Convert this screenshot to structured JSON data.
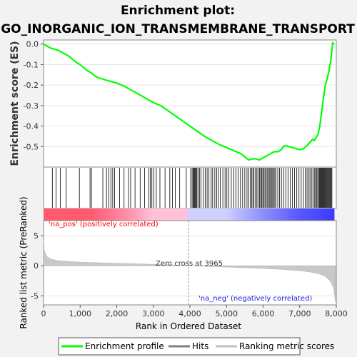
{
  "chart_data": {
    "type": "line",
    "title_line1": "Enrichment plot:",
    "title_line2": "GO_INORGANIC_ION_TRANSMEMBRANE_TRANSPORT",
    "es_panel": {
      "ylabel": "Enrichment score (ES)",
      "ylim": [
        -0.6,
        0.02
      ],
      "yticks": [
        "0.0",
        "-0.1",
        "-0.2",
        "-0.3",
        "-0.4",
        "-0.5"
      ],
      "ytick_values": [
        0.0,
        -0.1,
        -0.2,
        -0.3,
        -0.4,
        -0.5
      ],
      "line_color": "#00ff00",
      "x": [
        0,
        100,
        200,
        300,
        400,
        500,
        600,
        700,
        800,
        900,
        1000,
        1100,
        1200,
        1300,
        1400,
        1500,
        1600,
        1700,
        1800,
        1900,
        2000,
        2200,
        2400,
        2600,
        2800,
        3000,
        3200,
        3400,
        3600,
        3800,
        4000,
        4200,
        4400,
        4600,
        4800,
        5000,
        5200,
        5400,
        5500,
        5600,
        5700,
        5800,
        5900,
        6000,
        6100,
        6200,
        6300,
        6400,
        6500,
        6550,
        6600,
        6700,
        6800,
        6900,
        7000,
        7100,
        7200,
        7300,
        7350,
        7400,
        7450,
        7500,
        7550,
        7600,
        7650,
        7700,
        7750,
        7800,
        7850,
        7900,
        7950
      ],
      "y": [
        0.0,
        -0.01,
        -0.02,
        -0.025,
        -0.03,
        -0.04,
        -0.05,
        -0.06,
        -0.075,
        -0.09,
        -0.1,
        -0.115,
        -0.13,
        -0.14,
        -0.155,
        -0.165,
        -0.17,
        -0.175,
        -0.18,
        -0.185,
        -0.19,
        -0.205,
        -0.225,
        -0.245,
        -0.265,
        -0.285,
        -0.3,
        -0.325,
        -0.35,
        -0.375,
        -0.4,
        -0.425,
        -0.45,
        -0.47,
        -0.49,
        -0.505,
        -0.52,
        -0.535,
        -0.55,
        -0.565,
        -0.56,
        -0.56,
        -0.565,
        -0.555,
        -0.545,
        -0.535,
        -0.525,
        -0.525,
        -0.515,
        -0.5,
        -0.495,
        -0.5,
        -0.505,
        -0.51,
        -0.515,
        -0.51,
        -0.495,
        -0.475,
        -0.465,
        -0.47,
        -0.455,
        -0.44,
        -0.4,
        -0.33,
        -0.26,
        -0.2,
        -0.17,
        -0.13,
        -0.08,
        0.005,
        0.0
      ]
    },
    "hits_panel": {
      "hit_positions": [
        240,
        340,
        460,
        620,
        980,
        1270,
        1310,
        1620,
        1720,
        1780,
        1840,
        1890,
        1940,
        2080,
        2200,
        2320,
        2380,
        2500,
        2640,
        2760,
        2880,
        2920,
        2960,
        3010,
        3080,
        3180,
        3320,
        3450,
        3520,
        3600,
        3720,
        3900,
        4020,
        4060,
        4090,
        4110,
        4130,
        4150,
        4170,
        4190,
        4220,
        4260,
        4300,
        4370,
        4420,
        4470,
        4520,
        4580,
        4620,
        4680,
        4730,
        4780,
        4830,
        4900,
        4960,
        5010,
        5060,
        5130,
        5200,
        5260,
        5320,
        5380,
        5440,
        5500,
        5560,
        5610,
        5650,
        5690,
        5720,
        5750,
        5790,
        5830,
        5860,
        5900,
        5930,
        5960,
        5990,
        6020,
        6050,
        6080,
        6110,
        6140,
        6170,
        6200,
        6230,
        6260,
        6290,
        6320,
        6350,
        6400,
        6450,
        6500,
        6560,
        6620,
        6680,
        6740,
        6800,
        6860,
        6920,
        6980,
        7040,
        7100,
        7150,
        7200,
        7240,
        7280,
        7320,
        7360,
        7400,
        7430,
        7460,
        7490,
        7520,
        7540,
        7560,
        7580,
        7600,
        7620,
        7640,
        7660,
        7680,
        7700,
        7720,
        7740,
        7760,
        7780,
        7800,
        7820,
        7840,
        7860,
        7880
      ],
      "pos_label": "'na_pos' (positively correlated)",
      "neg_label": "'na_neg' (negatively correlated)"
    },
    "metric_panel": {
      "ylabel": "Ranked list metric (PreRanked)",
      "ylim": [
        -6.5,
        7.5
      ],
      "yticks": [
        "5",
        "0",
        "-5"
      ],
      "ytick_values": [
        5,
        0,
        -5
      ],
      "zero_cross_label": "Zero cross at 3965",
      "zero_cross": 3965,
      "x": [
        0,
        20,
        50,
        100,
        200,
        400,
        700,
        1000,
        1500,
        2000,
        2500,
        3000,
        3500,
        3965,
        4500,
        5000,
        5500,
        6000,
        6500,
        7000,
        7300,
        7500,
        7650,
        7750,
        7850,
        7920,
        7960,
        7980
      ],
      "y": [
        4.2,
        2.6,
        2.0,
        1.5,
        1.1,
        0.85,
        0.7,
        0.6,
        0.5,
        0.42,
        0.33,
        0.24,
        0.13,
        0.0,
        -0.12,
        -0.22,
        -0.33,
        -0.45,
        -0.6,
        -0.82,
        -1.05,
        -1.3,
        -1.6,
        -2.0,
        -2.7,
        -3.6,
        -5.2,
        -6.0
      ]
    },
    "xaxis": {
      "xlabel": "Rank in Ordered Dataset",
      "xlim": [
        0,
        8000
      ],
      "xticks": [
        "0",
        "1,000",
        "2,000",
        "3,000",
        "4,000",
        "5,000",
        "6,000",
        "7,000",
        "8,000"
      ],
      "xtick_values": [
        0,
        1000,
        2000,
        3000,
        4000,
        5000,
        6000,
        7000,
        8000
      ]
    },
    "legend": {
      "placement": "bottom",
      "entries": [
        {
          "label": "Enrichment profile",
          "color": "#00ff00"
        },
        {
          "label": "Hits",
          "color": "#808080"
        },
        {
          "label": "Ranking metric scores",
          "color": "#c0c0c0"
        }
      ]
    },
    "colors": {
      "pos_strong": "#ff5a6e",
      "pos_light": "#ffc0d8",
      "neg_light": "#d0d0ff",
      "neg_strong": "#3c3cff",
      "pos_text": "#ff0000",
      "neg_text": "#2020dd"
    }
  }
}
